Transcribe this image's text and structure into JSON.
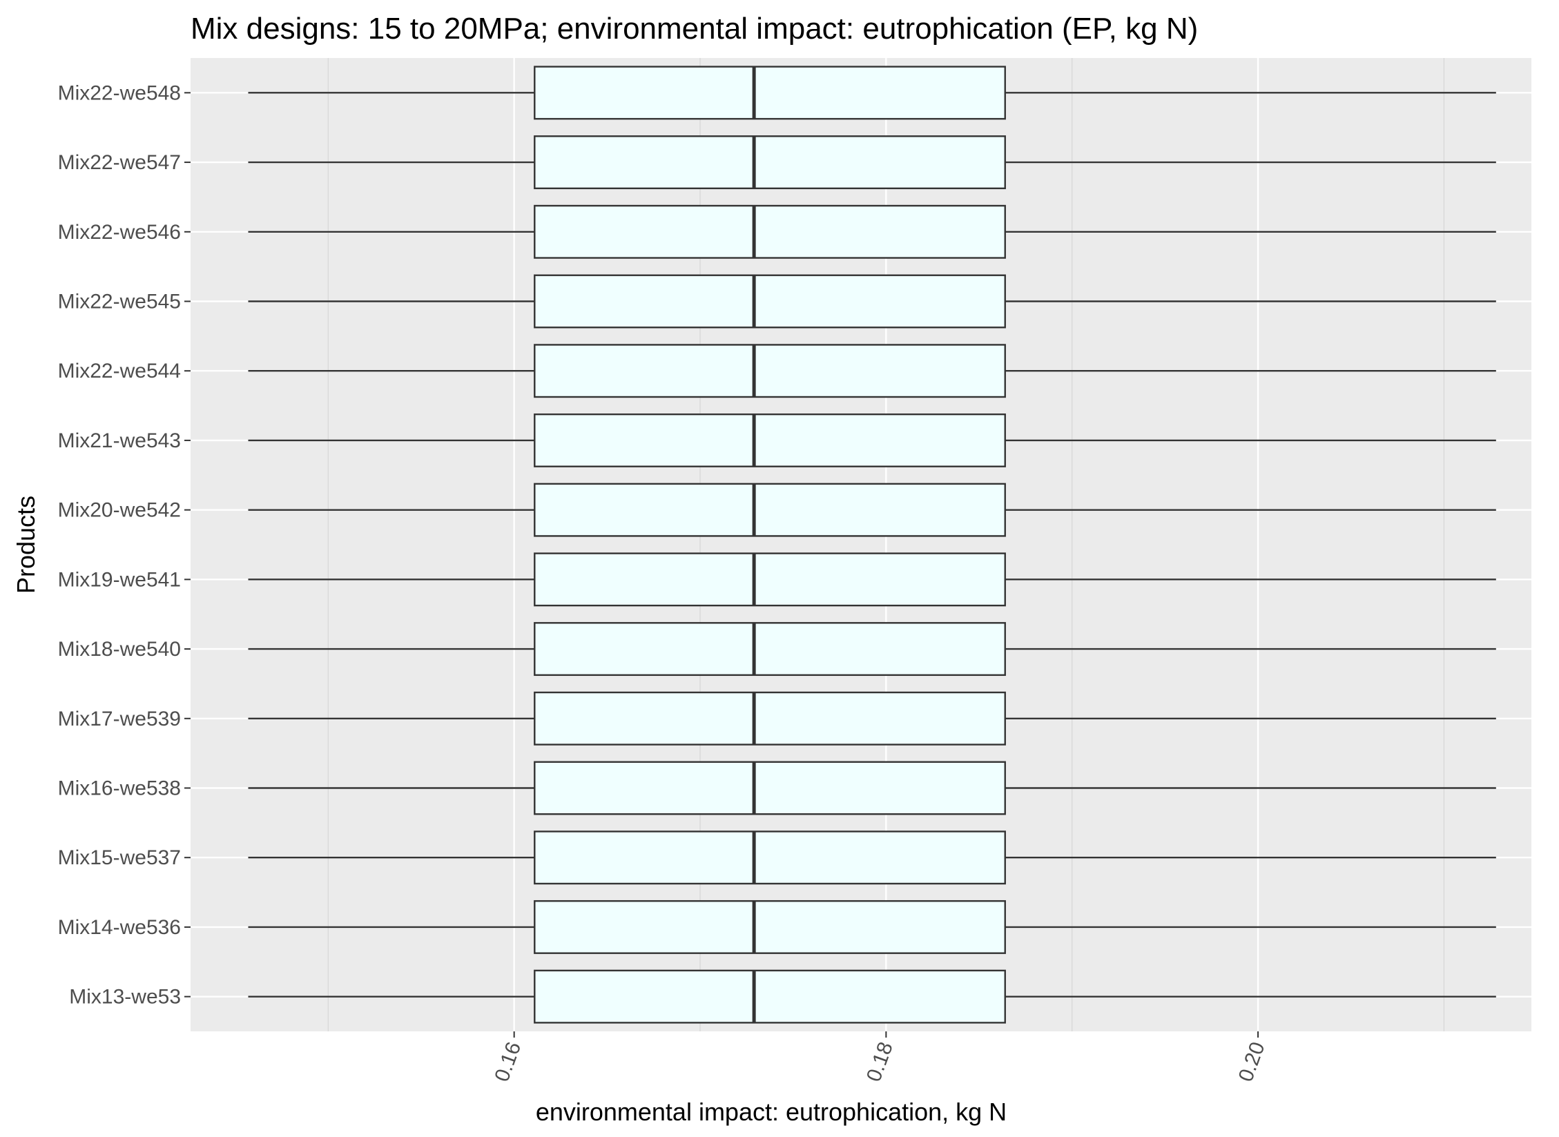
{
  "chart_data": {
    "type": "boxplot",
    "orientation": "horizontal",
    "title": "Mix designs: 15 to 20MPa; environmental impact: eutrophication (EP, kg N)",
    "xlabel": "environmental impact: eutrophication, kg N",
    "ylabel": "Products",
    "x_ticks": [
      "0.16",
      "0.18",
      "0.20"
    ],
    "x_tick_values": [
      0.16,
      0.18,
      0.2
    ],
    "xlim": [
      0.1426,
      0.2147
    ],
    "grid": true,
    "background": "#ebebeb",
    "box_fill": "#f0ffff",
    "categories": [
      "Mix22-we548",
      "Mix22-we547",
      "Mix22-we546",
      "Mix22-we545",
      "Mix22-we544",
      "Mix21-we543",
      "Mix20-we542",
      "Mix19-we541",
      "Mix18-we540",
      "Mix17-we539",
      "Mix16-we538",
      "Mix15-we537",
      "Mix14-we536",
      "Mix13-we53"
    ],
    "boxes": [
      {
        "label": "Mix22-we548",
        "min": 0.1457,
        "q1": 0.1611,
        "median": 0.1729,
        "q3": 0.1864,
        "max": 0.2128
      },
      {
        "label": "Mix22-we547",
        "min": 0.1457,
        "q1": 0.1611,
        "median": 0.1729,
        "q3": 0.1864,
        "max": 0.2128
      },
      {
        "label": "Mix22-we546",
        "min": 0.1457,
        "q1": 0.1611,
        "median": 0.1729,
        "q3": 0.1864,
        "max": 0.2128
      },
      {
        "label": "Mix22-we545",
        "min": 0.1457,
        "q1": 0.1611,
        "median": 0.1729,
        "q3": 0.1864,
        "max": 0.2128
      },
      {
        "label": "Mix22-we544",
        "min": 0.1457,
        "q1": 0.1611,
        "median": 0.1729,
        "q3": 0.1864,
        "max": 0.2128
      },
      {
        "label": "Mix21-we543",
        "min": 0.1457,
        "q1": 0.1611,
        "median": 0.1729,
        "q3": 0.1864,
        "max": 0.2128
      },
      {
        "label": "Mix20-we542",
        "min": 0.1457,
        "q1": 0.1611,
        "median": 0.1729,
        "q3": 0.1864,
        "max": 0.2128
      },
      {
        "label": "Mix19-we541",
        "min": 0.1457,
        "q1": 0.1611,
        "median": 0.1729,
        "q3": 0.1864,
        "max": 0.2128
      },
      {
        "label": "Mix18-we540",
        "min": 0.1457,
        "q1": 0.1611,
        "median": 0.1729,
        "q3": 0.1864,
        "max": 0.2128
      },
      {
        "label": "Mix17-we539",
        "min": 0.1457,
        "q1": 0.1611,
        "median": 0.1729,
        "q3": 0.1864,
        "max": 0.2128
      },
      {
        "label": "Mix16-we538",
        "min": 0.1457,
        "q1": 0.1611,
        "median": 0.1729,
        "q3": 0.1864,
        "max": 0.2128
      },
      {
        "label": "Mix15-we537",
        "min": 0.1457,
        "q1": 0.1611,
        "median": 0.1729,
        "q3": 0.1864,
        "max": 0.2128
      },
      {
        "label": "Mix14-we536",
        "min": 0.1457,
        "q1": 0.1611,
        "median": 0.1729,
        "q3": 0.1864,
        "max": 0.2128
      },
      {
        "label": "Mix13-we53",
        "min": 0.1457,
        "q1": 0.1611,
        "median": 0.1729,
        "q3": 0.1864,
        "max": 0.2128
      }
    ]
  }
}
